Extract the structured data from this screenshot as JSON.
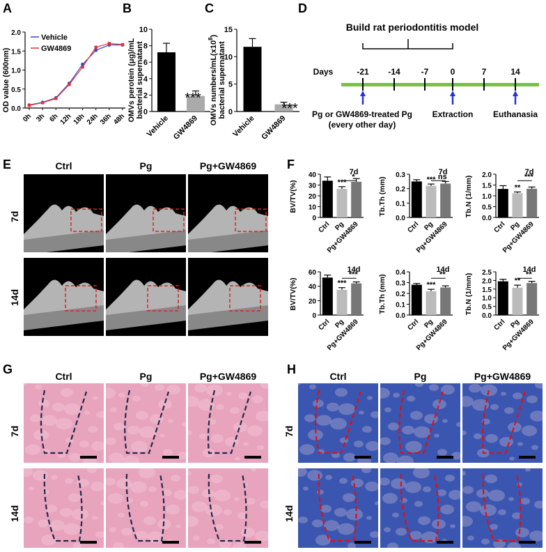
{
  "panels": {
    "A": "A",
    "B": "B",
    "C": "C",
    "D": "D",
    "E": "E",
    "F": "F",
    "G": "G",
    "H": "H"
  },
  "panelA": {
    "ylabel": "OD value (600nm)",
    "legend": [
      "Vehicle",
      "GW4869"
    ],
    "colors": {
      "vehicle": "#3344cc",
      "gw": "#dd3333"
    }
  },
  "panelB": {
    "ylabel_line1": "OMVs perotein (μg)/mL",
    "ylabel_line2": "bacterial supernatant",
    "sig": "***"
  },
  "panelC": {
    "ylabel_line1": "OMVs numbers/mL(x10",
    "ylabel_sup": "8",
    "ylabel_line1_end": ")",
    "ylabel_line2": "bacterial supernatant",
    "sig": "***"
  },
  "panelD": {
    "title": "Build rat periodontitis model",
    "days_label": "Days",
    "days": [
      "-21",
      "-14",
      "-7",
      "0",
      "7",
      "14"
    ],
    "event1_line1": "Pg or GW4869-treated Pg",
    "event1_line2": "(every other day)",
    "event2": "Extraction",
    "event3": "Euthanasia",
    "bar_color": "#7ac143",
    "arrow_color": "#2233dd"
  },
  "panelE": {
    "cols": [
      "Ctrl",
      "Pg",
      "Pg+GW4869"
    ],
    "rows": [
      "7d",
      "14d"
    ]
  },
  "panelF": {
    "categories": [
      "Ctrl",
      "Pg",
      "Pg+GW4869"
    ],
    "subplots": [
      {
        "title": "7d",
        "ylabel": "BV/TV(%)",
        "ticks": [
          "0",
          "10",
          "20",
          "30",
          "40"
        ],
        "sig1": "***",
        "sig2": "*"
      },
      {
        "title": "7d",
        "ylabel": "Tb.Th (mm)",
        "ticks": [
          "0.0",
          "0.1",
          "0.2",
          "0.3"
        ],
        "sig1": "***",
        "sig2": "ns"
      },
      {
        "title": "7d",
        "ylabel": "Tb.N (1/mm)",
        "ticks": [
          "0.0",
          "0.5",
          "1.0",
          "1.5",
          "2.0"
        ],
        "sig1": "**",
        "sig2": "***"
      },
      {
        "title": "14d",
        "ylabel": "BV/TV(%)",
        "ticks": [
          "0",
          "20",
          "40",
          "60"
        ],
        "sig1": "***",
        "sig2": "***"
      },
      {
        "title": "14d",
        "ylabel": "Tb.Th (mm)",
        "ticks": [
          "0.0",
          "0.1",
          "0.2",
          "0.3",
          "0.4"
        ],
        "sig1": "***",
        "sig2": "**"
      },
      {
        "title": "14d",
        "ylabel": "Tb.N (1/mm)",
        "ticks": [
          "0.0",
          "0.5",
          "1.0",
          "1.5",
          "2.0",
          "2.5"
        ],
        "sig1": "**",
        "sig2": "**"
      }
    ],
    "colors": {
      "ctrl": "#000000",
      "pg": "#bbbbbb",
      "gw": "#777777"
    }
  },
  "panelG": {
    "cols": [
      "Ctrl",
      "Pg",
      "Pg+GW4869"
    ],
    "rows": [
      "7d",
      "14d"
    ]
  },
  "panelH": {
    "cols": [
      "Ctrl",
      "Pg",
      "Pg+GW4869"
    ],
    "rows": [
      "7d",
      "14d"
    ]
  },
  "chart_data": [
    {
      "type": "line",
      "panel": "A",
      "x": [
        "0h",
        "3h",
        "6h",
        "12h",
        "18h",
        "24h",
        "36h",
        "48h"
      ],
      "series": [
        {
          "name": "Vehicle",
          "values": [
            0.08,
            0.15,
            0.27,
            0.65,
            1.15,
            1.52,
            1.66,
            1.66
          ]
        },
        {
          "name": "GW4869",
          "values": [
            0.07,
            0.14,
            0.25,
            0.62,
            1.08,
            1.6,
            1.7,
            1.67
          ]
        }
      ],
      "yticks": [
        "0.0",
        "0.5",
        "1.0",
        "1.5",
        "2.0"
      ],
      "ylim": [
        0,
        2.0
      ]
    },
    {
      "type": "bar",
      "panel": "B",
      "categories": [
        "Vehicle",
        "GW4869"
      ],
      "values": [
        7.2,
        1.9
      ],
      "errors": [
        1.1,
        0.6
      ],
      "yticks": [
        "0",
        "2",
        "4",
        "6",
        "8",
        "10"
      ],
      "ylim": [
        0,
        10
      ]
    },
    {
      "type": "bar",
      "panel": "C",
      "categories": [
        "Vehicle",
        "GW4869"
      ],
      "values": [
        11.8,
        1.3
      ],
      "errors": [
        1.5,
        0.4
      ],
      "yticks": [
        "0",
        "5",
        "10",
        "15"
      ],
      "ylim": [
        0,
        15
      ]
    },
    {
      "type": "bar",
      "panel": "F-7d-BVTV",
      "categories": [
        "Ctrl",
        "Pg",
        "Pg+GW4869"
      ],
      "values": [
        34,
        26.5,
        33
      ],
      "errors": [
        3.5,
        2,
        3
      ],
      "ylim": [
        0,
        40
      ]
    },
    {
      "type": "bar",
      "panel": "F-7d-TbTh",
      "categories": [
        "Ctrl",
        "Pg",
        "Pg+GW4869"
      ],
      "values": [
        0.25,
        0.22,
        0.235
      ],
      "errors": [
        0.012,
        0.012,
        0.015
      ],
      "ylim": [
        0,
        0.3
      ]
    },
    {
      "type": "bar",
      "panel": "F-7d-TbN",
      "categories": [
        "Ctrl",
        "Pg",
        "Pg+GW4869"
      ],
      "values": [
        1.32,
        1.12,
        1.33
      ],
      "errors": [
        0.15,
        0.06,
        0.08
      ],
      "ylim": [
        0,
        2.0
      ]
    },
    {
      "type": "bar",
      "panel": "F-14d-BVTV",
      "categories": [
        "Ctrl",
        "Pg",
        "Pg+GW4869"
      ],
      "values": [
        52,
        35,
        44
      ],
      "errors": [
        3.5,
        3,
        2
      ],
      "ylim": [
        0,
        60
      ]
    },
    {
      "type": "bar",
      "panel": "F-14d-TbTh",
      "categories": [
        "Ctrl",
        "Pg",
        "Pg+GW4869"
      ],
      "values": [
        0.28,
        0.22,
        0.255
      ],
      "errors": [
        0.012,
        0.018,
        0.015
      ],
      "ylim": [
        0,
        0.4
      ]
    },
    {
      "type": "bar",
      "panel": "F-14d-TbN",
      "categories": [
        "Ctrl",
        "Pg",
        "Pg+GW4869"
      ],
      "values": [
        1.95,
        1.58,
        1.85
      ],
      "errors": [
        0.12,
        0.15,
        0.1
      ],
      "ylim": [
        0,
        2.5
      ]
    }
  ]
}
